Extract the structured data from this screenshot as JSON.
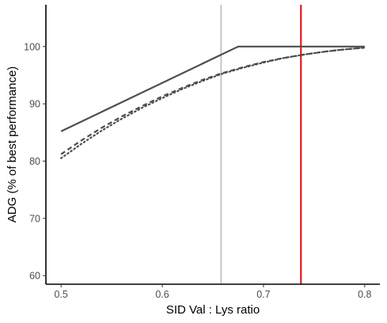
{
  "chart_data": {
    "type": "line",
    "title": "",
    "xlabel": "SID Val : Lys ratio",
    "ylabel": "ADG (% of best performance)",
    "xlim": [
      0.485,
      0.815
    ],
    "ylim": [
      58.5,
      107.3
    ],
    "x_ticks": [
      0.5,
      0.6,
      0.7,
      0.8
    ],
    "x_tick_labels": [
      "0.5",
      "0.6",
      "0.7",
      "0.8"
    ],
    "y_ticks": [
      60,
      70,
      80,
      90,
      100
    ],
    "y_tick_labels": [
      "60",
      "70",
      "80",
      "90",
      "100"
    ],
    "grid": false,
    "legend": "none",
    "series": [
      {
        "style": "solid",
        "color": "#4d4d4d",
        "x": [
          0.5,
          0.675,
          0.8
        ],
        "y": [
          85.2,
          100.0,
          100.0
        ]
      },
      {
        "style": "dashed",
        "color": "#4d4d4d",
        "x": [
          0.5,
          0.52,
          0.54,
          0.56,
          0.58,
          0.6,
          0.62,
          0.64,
          0.66,
          0.68,
          0.7,
          0.72,
          0.74,
          0.76,
          0.78,
          0.8
        ],
        "y": [
          81.2,
          83.6,
          85.8,
          87.8,
          89.6,
          91.3,
          92.8,
          94.2,
          95.4,
          96.4,
          97.3,
          98.0,
          98.6,
          99.1,
          99.5,
          99.8
        ]
      },
      {
        "style": "dotted",
        "color": "#4d4d4d",
        "x": [
          0.5,
          0.52,
          0.54,
          0.56,
          0.58,
          0.6,
          0.62,
          0.64,
          0.66,
          0.68,
          0.7,
          0.72,
          0.74,
          0.76,
          0.78,
          0.8
        ],
        "y": [
          80.5,
          83.0,
          85.3,
          87.4,
          89.3,
          91.0,
          92.6,
          94.0,
          95.3,
          96.3,
          97.2,
          98.0,
          98.6,
          99.1,
          99.5,
          99.8
        ]
      }
    ],
    "vlines": [
      {
        "x": 0.658,
        "color": "#999999"
      },
      {
        "x": 0.737,
        "color": "#e8171c"
      }
    ]
  }
}
